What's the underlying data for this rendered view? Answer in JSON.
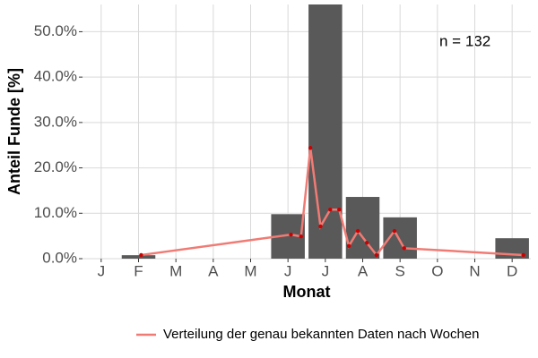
{
  "chart_data": {
    "type": "bar",
    "categories": [
      "J",
      "F",
      "M",
      "A",
      "M",
      "J",
      "J",
      "A",
      "S",
      "O",
      "N",
      "D"
    ],
    "values": [
      0,
      0.76,
      0,
      0,
      0,
      9.8,
      56,
      13.6,
      9.1,
      0,
      0,
      4.5
    ],
    "color": "#595959",
    "xlabel": "Monat",
    "ylabel": "Anteil Funde [%]",
    "annotation": "n = 132",
    "ylim": [
      0,
      56
    ],
    "yticks": [
      {
        "value": 0,
        "label": "0.0%"
      },
      {
        "value": 10,
        "label": "10.0%"
      },
      {
        "value": 20,
        "label": "20.0%"
      },
      {
        "value": 30,
        "label": "30.0%"
      },
      {
        "value": 40,
        "label": "40.0%"
      },
      {
        "value": 50,
        "label": "50.0%"
      }
    ],
    "xlim": [
      0.5,
      12.5
    ],
    "grid": true,
    "legend": "bottom",
    "line": {
      "name": "Verteilung der genau bekannten Daten nach Wochen",
      "color": "#f07b74",
      "point_color": "#cc0000",
      "x": [
        2.07,
        6.08,
        6.35,
        6.6,
        6.87,
        7.13,
        7.37,
        7.63,
        7.87,
        8.11,
        8.37,
        8.85,
        9.11,
        12.3
      ],
      "values": [
        0.8,
        5.3,
        4.9,
        24.4,
        7.1,
        10.8,
        10.8,
        2.8,
        6.1,
        3.5,
        0.8,
        6.1,
        2.3,
        0.8
      ]
    }
  }
}
